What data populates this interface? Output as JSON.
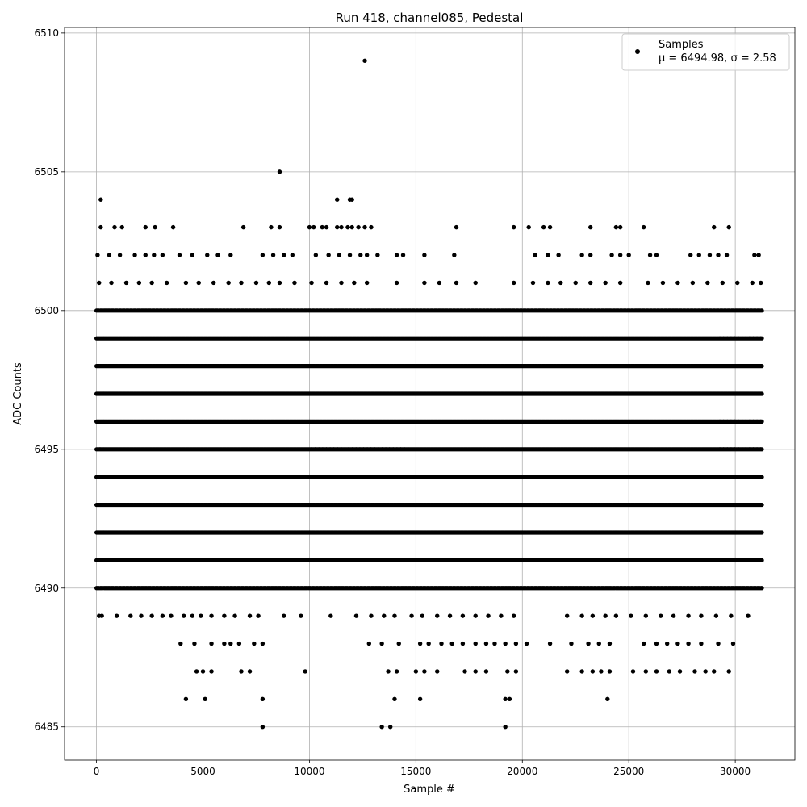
{
  "chart_data": {
    "type": "scatter",
    "title": "Run 418, channel085, Pedestal",
    "xlabel": "Sample #",
    "ylabel": "ADC Counts",
    "xlim": [
      -1500,
      32800
    ],
    "ylim": [
      6483.8,
      6510.2
    ],
    "x_ticks": [
      0,
      5000,
      10000,
      15000,
      20000,
      25000,
      30000
    ],
    "x_tick_labels": [
      "0",
      "5000",
      "10000",
      "15000",
      "20000",
      "25000",
      "30000"
    ],
    "y_ticks": [
      6485,
      6490,
      6495,
      6500,
      6505,
      6510
    ],
    "y_tick_labels": [
      "6485",
      "6490",
      "6495",
      "6500",
      "6505",
      "6510"
    ],
    "grid": true,
    "legend": {
      "placement": "top-right",
      "entry": "Samples",
      "stats": "μ = 6494.98, σ = 2.58"
    },
    "marker_color": "#000000",
    "n_samples": 31250,
    "levels": [
      {
        "y": 6491,
        "coverage": "continuous",
        "x_range": [
          0,
          31250
        ]
      },
      {
        "y": 6492,
        "coverage": "continuous",
        "x_range": [
          0,
          31250
        ]
      },
      {
        "y": 6493,
        "coverage": "continuous",
        "x_range": [
          0,
          31250
        ]
      },
      {
        "y": 6494,
        "coverage": "continuous",
        "x_range": [
          0,
          31250
        ]
      },
      {
        "y": 6495,
        "coverage": "continuous",
        "x_range": [
          0,
          31250
        ]
      },
      {
        "y": 6496,
        "coverage": "continuous",
        "x_range": [
          0,
          31250
        ]
      },
      {
        "y": 6497,
        "coverage": "continuous",
        "x_range": [
          0,
          31250
        ]
      },
      {
        "y": 6498,
        "coverage": "continuous",
        "x_range": [
          0,
          31250
        ]
      },
      {
        "y": 6499,
        "coverage": "continuous",
        "x_range": [
          0,
          31250
        ]
      },
      {
        "y": 6500,
        "coverage": "dense",
        "x_range": [
          0,
          31250
        ]
      },
      {
        "y": 6490,
        "coverage": "dense",
        "x_range": [
          0,
          31250
        ]
      }
    ],
    "sparse_points": [
      {
        "x": 120,
        "y": 6489
      },
      {
        "x": 250,
        "y": 6489
      },
      {
        "x": 950,
        "y": 6489
      },
      {
        "x": 1600,
        "y": 6489
      },
      {
        "x": 2100,
        "y": 6489
      },
      {
        "x": 2600,
        "y": 6489
      },
      {
        "x": 3100,
        "y": 6489
      },
      {
        "x": 3500,
        "y": 6489
      },
      {
        "x": 4100,
        "y": 6489
      },
      {
        "x": 4500,
        "y": 6489
      },
      {
        "x": 4900,
        "y": 6489
      },
      {
        "x": 5400,
        "y": 6489
      },
      {
        "x": 6000,
        "y": 6489
      },
      {
        "x": 6500,
        "y": 6489
      },
      {
        "x": 7200,
        "y": 6489
      },
      {
        "x": 7600,
        "y": 6489
      },
      {
        "x": 8800,
        "y": 6489
      },
      {
        "x": 9600,
        "y": 6489
      },
      {
        "x": 11000,
        "y": 6489
      },
      {
        "x": 12200,
        "y": 6489
      },
      {
        "x": 12900,
        "y": 6489
      },
      {
        "x": 13500,
        "y": 6489
      },
      {
        "x": 14000,
        "y": 6489
      },
      {
        "x": 14800,
        "y": 6489
      },
      {
        "x": 15300,
        "y": 6489
      },
      {
        "x": 16000,
        "y": 6489
      },
      {
        "x": 16600,
        "y": 6489
      },
      {
        "x": 17200,
        "y": 6489
      },
      {
        "x": 17800,
        "y": 6489
      },
      {
        "x": 18400,
        "y": 6489
      },
      {
        "x": 19000,
        "y": 6489
      },
      {
        "x": 19600,
        "y": 6489
      },
      {
        "x": 22100,
        "y": 6489
      },
      {
        "x": 22800,
        "y": 6489
      },
      {
        "x": 23300,
        "y": 6489
      },
      {
        "x": 23900,
        "y": 6489
      },
      {
        "x": 24400,
        "y": 6489
      },
      {
        "x": 25100,
        "y": 6489
      },
      {
        "x": 25800,
        "y": 6489
      },
      {
        "x": 26500,
        "y": 6489
      },
      {
        "x": 27100,
        "y": 6489
      },
      {
        "x": 27800,
        "y": 6489
      },
      {
        "x": 28400,
        "y": 6489
      },
      {
        "x": 29100,
        "y": 6489
      },
      {
        "x": 29800,
        "y": 6489
      },
      {
        "x": 30600,
        "y": 6489
      },
      {
        "x": 3950,
        "y": 6488
      },
      {
        "x": 4600,
        "y": 6488
      },
      {
        "x": 5400,
        "y": 6488
      },
      {
        "x": 6000,
        "y": 6488
      },
      {
        "x": 6300,
        "y": 6488
      },
      {
        "x": 6700,
        "y": 6488
      },
      {
        "x": 7400,
        "y": 6488
      },
      {
        "x": 7800,
        "y": 6488
      },
      {
        "x": 12800,
        "y": 6488
      },
      {
        "x": 13400,
        "y": 6488
      },
      {
        "x": 14200,
        "y": 6488
      },
      {
        "x": 15200,
        "y": 6488
      },
      {
        "x": 15600,
        "y": 6488
      },
      {
        "x": 16200,
        "y": 6488
      },
      {
        "x": 16700,
        "y": 6488
      },
      {
        "x": 17200,
        "y": 6488
      },
      {
        "x": 17800,
        "y": 6488
      },
      {
        "x": 18300,
        "y": 6488
      },
      {
        "x": 18700,
        "y": 6488
      },
      {
        "x": 19200,
        "y": 6488
      },
      {
        "x": 19700,
        "y": 6488
      },
      {
        "x": 20200,
        "y": 6488
      },
      {
        "x": 21300,
        "y": 6488
      },
      {
        "x": 22300,
        "y": 6488
      },
      {
        "x": 23100,
        "y": 6488
      },
      {
        "x": 23600,
        "y": 6488
      },
      {
        "x": 24100,
        "y": 6488
      },
      {
        "x": 25700,
        "y": 6488
      },
      {
        "x": 26300,
        "y": 6488
      },
      {
        "x": 26800,
        "y": 6488
      },
      {
        "x": 27300,
        "y": 6488
      },
      {
        "x": 27800,
        "y": 6488
      },
      {
        "x": 28400,
        "y": 6488
      },
      {
        "x": 29200,
        "y": 6488
      },
      {
        "x": 29900,
        "y": 6488
      },
      {
        "x": 4700,
        "y": 6487
      },
      {
        "x": 5000,
        "y": 6487
      },
      {
        "x": 5400,
        "y": 6487
      },
      {
        "x": 6800,
        "y": 6487
      },
      {
        "x": 7200,
        "y": 6487
      },
      {
        "x": 9800,
        "y": 6487
      },
      {
        "x": 13700,
        "y": 6487
      },
      {
        "x": 14100,
        "y": 6487
      },
      {
        "x": 15000,
        "y": 6487
      },
      {
        "x": 15400,
        "y": 6487
      },
      {
        "x": 16000,
        "y": 6487
      },
      {
        "x": 17300,
        "y": 6487
      },
      {
        "x": 17800,
        "y": 6487
      },
      {
        "x": 18300,
        "y": 6487
      },
      {
        "x": 19300,
        "y": 6487
      },
      {
        "x": 19700,
        "y": 6487
      },
      {
        "x": 22100,
        "y": 6487
      },
      {
        "x": 22800,
        "y": 6487
      },
      {
        "x": 23300,
        "y": 6487
      },
      {
        "x": 23700,
        "y": 6487
      },
      {
        "x": 24100,
        "y": 6487
      },
      {
        "x": 25200,
        "y": 6487
      },
      {
        "x": 25800,
        "y": 6487
      },
      {
        "x": 26300,
        "y": 6487
      },
      {
        "x": 26900,
        "y": 6487
      },
      {
        "x": 27400,
        "y": 6487
      },
      {
        "x": 28100,
        "y": 6487
      },
      {
        "x": 28600,
        "y": 6487
      },
      {
        "x": 29000,
        "y": 6487
      },
      {
        "x": 29700,
        "y": 6487
      },
      {
        "x": 4200,
        "y": 6486
      },
      {
        "x": 5100,
        "y": 6486
      },
      {
        "x": 7800,
        "y": 6486
      },
      {
        "x": 14000,
        "y": 6486
      },
      {
        "x": 15200,
        "y": 6486
      },
      {
        "x": 19200,
        "y": 6486
      },
      {
        "x": 19400,
        "y": 6486
      },
      {
        "x": 24000,
        "y": 6486
      },
      {
        "x": 7800,
        "y": 6485
      },
      {
        "x": 13400,
        "y": 6485
      },
      {
        "x": 13800,
        "y": 6485
      },
      {
        "x": 19200,
        "y": 6485
      },
      {
        "x": 120,
        "y": 6501
      },
      {
        "x": 700,
        "y": 6501
      },
      {
        "x": 1400,
        "y": 6501
      },
      {
        "x": 2000,
        "y": 6501
      },
      {
        "x": 2600,
        "y": 6501
      },
      {
        "x": 3300,
        "y": 6501
      },
      {
        "x": 4200,
        "y": 6501
      },
      {
        "x": 4800,
        "y": 6501
      },
      {
        "x": 5500,
        "y": 6501
      },
      {
        "x": 6200,
        "y": 6501
      },
      {
        "x": 6800,
        "y": 6501
      },
      {
        "x": 7500,
        "y": 6501
      },
      {
        "x": 8100,
        "y": 6501
      },
      {
        "x": 8600,
        "y": 6501
      },
      {
        "x": 9300,
        "y": 6501
      },
      {
        "x": 10100,
        "y": 6501
      },
      {
        "x": 10800,
        "y": 6501
      },
      {
        "x": 11500,
        "y": 6501
      },
      {
        "x": 12100,
        "y": 6501
      },
      {
        "x": 12700,
        "y": 6501
      },
      {
        "x": 14100,
        "y": 6501
      },
      {
        "x": 15400,
        "y": 6501
      },
      {
        "x": 16100,
        "y": 6501
      },
      {
        "x": 16900,
        "y": 6501
      },
      {
        "x": 17800,
        "y": 6501
      },
      {
        "x": 19600,
        "y": 6501
      },
      {
        "x": 20500,
        "y": 6501
      },
      {
        "x": 21200,
        "y": 6501
      },
      {
        "x": 21800,
        "y": 6501
      },
      {
        "x": 22500,
        "y": 6501
      },
      {
        "x": 23200,
        "y": 6501
      },
      {
        "x": 23900,
        "y": 6501
      },
      {
        "x": 24600,
        "y": 6501
      },
      {
        "x": 25900,
        "y": 6501
      },
      {
        "x": 26600,
        "y": 6501
      },
      {
        "x": 27300,
        "y": 6501
      },
      {
        "x": 28000,
        "y": 6501
      },
      {
        "x": 28700,
        "y": 6501
      },
      {
        "x": 29400,
        "y": 6501
      },
      {
        "x": 30100,
        "y": 6501
      },
      {
        "x": 30800,
        "y": 6501
      },
      {
        "x": 31200,
        "y": 6501
      },
      {
        "x": 50,
        "y": 6502
      },
      {
        "x": 600,
        "y": 6502
      },
      {
        "x": 1100,
        "y": 6502
      },
      {
        "x": 1800,
        "y": 6502
      },
      {
        "x": 2300,
        "y": 6502
      },
      {
        "x": 2700,
        "y": 6502
      },
      {
        "x": 3100,
        "y": 6502
      },
      {
        "x": 3900,
        "y": 6502
      },
      {
        "x": 4500,
        "y": 6502
      },
      {
        "x": 5200,
        "y": 6502
      },
      {
        "x": 5700,
        "y": 6502
      },
      {
        "x": 6300,
        "y": 6502
      },
      {
        "x": 7800,
        "y": 6502
      },
      {
        "x": 8300,
        "y": 6502
      },
      {
        "x": 8800,
        "y": 6502
      },
      {
        "x": 9200,
        "y": 6502
      },
      {
        "x": 10300,
        "y": 6502
      },
      {
        "x": 10900,
        "y": 6502
      },
      {
        "x": 11400,
        "y": 6502
      },
      {
        "x": 11900,
        "y": 6502
      },
      {
        "x": 12400,
        "y": 6502
      },
      {
        "x": 12700,
        "y": 6502
      },
      {
        "x": 13200,
        "y": 6502
      },
      {
        "x": 14100,
        "y": 6502
      },
      {
        "x": 14400,
        "y": 6502
      },
      {
        "x": 15400,
        "y": 6502
      },
      {
        "x": 16800,
        "y": 6502
      },
      {
        "x": 20600,
        "y": 6502
      },
      {
        "x": 21200,
        "y": 6502
      },
      {
        "x": 21700,
        "y": 6502
      },
      {
        "x": 22800,
        "y": 6502
      },
      {
        "x": 23200,
        "y": 6502
      },
      {
        "x": 24200,
        "y": 6502
      },
      {
        "x": 24600,
        "y": 6502
      },
      {
        "x": 25000,
        "y": 6502
      },
      {
        "x": 26000,
        "y": 6502
      },
      {
        "x": 26300,
        "y": 6502
      },
      {
        "x": 27900,
        "y": 6502
      },
      {
        "x": 28300,
        "y": 6502
      },
      {
        "x": 28800,
        "y": 6502
      },
      {
        "x": 29200,
        "y": 6502
      },
      {
        "x": 29600,
        "y": 6502
      },
      {
        "x": 30900,
        "y": 6502
      },
      {
        "x": 31100,
        "y": 6502
      },
      {
        "x": 200,
        "y": 6503
      },
      {
        "x": 850,
        "y": 6503
      },
      {
        "x": 1200,
        "y": 6503
      },
      {
        "x": 2300,
        "y": 6503
      },
      {
        "x": 2750,
        "y": 6503
      },
      {
        "x": 3600,
        "y": 6503
      },
      {
        "x": 6900,
        "y": 6503
      },
      {
        "x": 8200,
        "y": 6503
      },
      {
        "x": 8600,
        "y": 6503
      },
      {
        "x": 10000,
        "y": 6503
      },
      {
        "x": 10200,
        "y": 6503
      },
      {
        "x": 10600,
        "y": 6503
      },
      {
        "x": 10800,
        "y": 6503
      },
      {
        "x": 11300,
        "y": 6503
      },
      {
        "x": 11500,
        "y": 6503
      },
      {
        "x": 11800,
        "y": 6503
      },
      {
        "x": 12000,
        "y": 6503
      },
      {
        "x": 12300,
        "y": 6503
      },
      {
        "x": 12600,
        "y": 6503
      },
      {
        "x": 12900,
        "y": 6503
      },
      {
        "x": 16900,
        "y": 6503
      },
      {
        "x": 19600,
        "y": 6503
      },
      {
        "x": 20300,
        "y": 6503
      },
      {
        "x": 21000,
        "y": 6503
      },
      {
        "x": 21300,
        "y": 6503
      },
      {
        "x": 23200,
        "y": 6503
      },
      {
        "x": 24400,
        "y": 6503
      },
      {
        "x": 24600,
        "y": 6503
      },
      {
        "x": 25700,
        "y": 6503
      },
      {
        "x": 29000,
        "y": 6503
      },
      {
        "x": 29700,
        "y": 6503
      },
      {
        "x": 200,
        "y": 6504
      },
      {
        "x": 11300,
        "y": 6504
      },
      {
        "x": 11900,
        "y": 6504
      },
      {
        "x": 12000,
        "y": 6504
      },
      {
        "x": 8600,
        "y": 6505
      },
      {
        "x": 12600,
        "y": 6509
      }
    ]
  }
}
